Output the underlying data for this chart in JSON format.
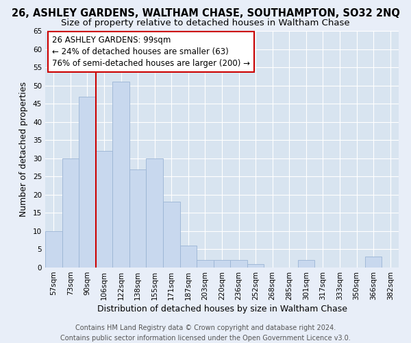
{
  "title": "26, ASHLEY GARDENS, WALTHAM CHASE, SOUTHAMPTON, SO32 2NQ",
  "subtitle": "Size of property relative to detached houses in Waltham Chase",
  "xlabel": "Distribution of detached houses by size in Waltham Chase",
  "ylabel": "Number of detached properties",
  "footer_line1": "Contains HM Land Registry data © Crown copyright and database right 2024.",
  "footer_line2": "Contains public sector information licensed under the Open Government Licence v3.0.",
  "bin_labels": [
    "57sqm",
    "73sqm",
    "90sqm",
    "106sqm",
    "122sqm",
    "138sqm",
    "155sqm",
    "171sqm",
    "187sqm",
    "203sqm",
    "220sqm",
    "236sqm",
    "252sqm",
    "268sqm",
    "285sqm",
    "301sqm",
    "317sqm",
    "333sqm",
    "350sqm",
    "366sqm",
    "382sqm"
  ],
  "bar_heights": [
    10,
    30,
    47,
    32,
    51,
    27,
    30,
    18,
    6,
    2,
    2,
    2,
    1,
    0,
    0,
    2,
    0,
    0,
    0,
    3,
    0
  ],
  "bar_color": "#c8d8ee",
  "bar_edge_color": "#9ab4d4",
  "ylim": [
    0,
    65
  ],
  "yticks": [
    0,
    5,
    10,
    15,
    20,
    25,
    30,
    35,
    40,
    45,
    50,
    55,
    60,
    65
  ],
  "property_line_x": 3.0,
  "property_line_color": "#cc0000",
  "annotation_line1": "26 ASHLEY GARDENS: 99sqm",
  "annotation_line2": "← 24% of detached houses are smaller (63)",
  "annotation_line3": "76% of semi-detached houses are larger (200) →",
  "bg_color": "#e8eef8",
  "plot_bg_color": "#d8e4f0",
  "grid_color": "#ffffff",
  "title_fontsize": 10.5,
  "subtitle_fontsize": 9.5,
  "xlabel_fontsize": 9,
  "ylabel_fontsize": 9,
  "tick_fontsize": 7.5,
  "annotation_fontsize": 8.5,
  "footer_fontsize": 7
}
